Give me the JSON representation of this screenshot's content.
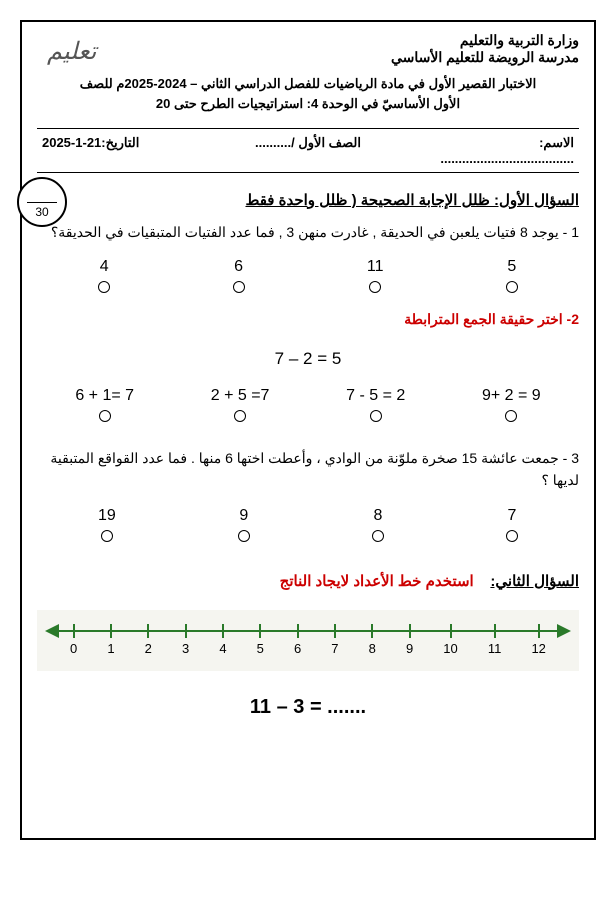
{
  "header": {
    "ministry_line1": "وزارة التربية والتعليم",
    "ministry_line2": "مدرسة الرويضة للتعليم الأساسي",
    "exam_line1": "الاختبار القصير الأول في مادة الرياضيات للفصل الدراسي الثاني – 2024-2025م للصف",
    "exam_line2": "الأول الأساسيّ في الوحدة 4: استراتيجيات الطرح حتى 20",
    "logo_text": "تعليم"
  },
  "info": {
    "name_label": "الاسم: .....................................",
    "class_label": "الصف الأول /..........",
    "date_label": "التاريخ:21-1-2025"
  },
  "score": {
    "total": "30"
  },
  "q1": {
    "title": "السؤال الأول: ظلل الإجابة الصحيحة ( ظلل واحدة فقط",
    "sub1": {
      "text": "1 - يوجد 8 فتيات يلعبن في الحديقة , غادرت منهن 3 , فما عدد الفتيات المتبقيات في الحديقة؟",
      "options": [
        "4",
        "6",
        "11",
        "5"
      ]
    },
    "sub2": {
      "text": "2- اختر حقيقة الجمع المترابطة",
      "equation": "7 – 2 = 5",
      "options": [
        "6 + 1= 7",
        "2 + 5 =7",
        "7 - 5 = 2",
        "9+ 2 = 9"
      ]
    },
    "sub3": {
      "text": "3 - جمعت عائشة 15 صخرة ملوّنة من الوادي ، وأعطت اختها 6 منها . فما عدد القواقع المتبقية لديها ؟",
      "options": [
        "19",
        "9",
        "8",
        "7"
      ]
    }
  },
  "q2": {
    "title_label": "السؤال الثاني:",
    "title_red": "استخدم خط الأعداد لايجاد الناتج",
    "numberline": {
      "ticks": [
        "0",
        "1",
        "2",
        "3",
        "4",
        "5",
        "6",
        "7",
        "8",
        "9",
        "10",
        "11",
        "12"
      ],
      "line_color": "#2a7a2a",
      "bg_color": "#f5f5f0"
    },
    "equation": "11 – 3 = ......."
  }
}
